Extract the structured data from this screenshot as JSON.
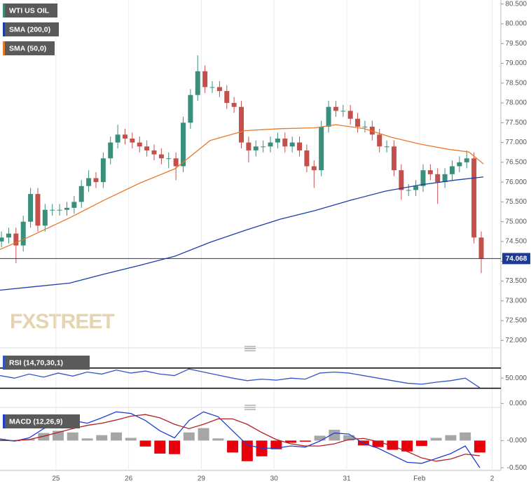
{
  "chart_data": [
    {
      "type": "candlestick",
      "title": "WTI US OIL",
      "watermark": "FXSTREET",
      "up_color": "#3a8f7c",
      "down_color": "#c4504c",
      "x": [
        -0.75,
        -0.65,
        -0.55,
        -0.45,
        -0.35,
        -0.25,
        -0.15,
        -0.05,
        0.05,
        0.15,
        0.25,
        0.35,
        0.45,
        0.55,
        0.65,
        0.75,
        0.85,
        0.95,
        1.05,
        1.15,
        1.25,
        1.35,
        1.45,
        1.55,
        1.65,
        1.75,
        1.85,
        1.95,
        2.05,
        2.15,
        2.25,
        2.35,
        2.45,
        2.55,
        2.65,
        2.75,
        2.85,
        2.95,
        3.05,
        3.15,
        3.25,
        3.35,
        3.45,
        3.55,
        3.65,
        3.75,
        3.85,
        3.95,
        4.05,
        4.15,
        4.25,
        4.35,
        4.45,
        4.55,
        4.65,
        4.75,
        4.85,
        4.95,
        5.05,
        5.15,
        5.25,
        5.35,
        5.45,
        5.55,
        5.65,
        5.75,
        5.85
      ],
      "open": [
        74.5,
        74.6,
        74.7,
        74.4,
        75.0,
        75.7,
        74.9,
        75.3,
        75.3,
        75.3,
        75.35,
        75.5,
        75.9,
        76.1,
        76.0,
        76.6,
        77.0,
        77.2,
        77.1,
        77.0,
        76.9,
        76.8,
        76.7,
        76.6,
        76.6,
        76.4,
        77.5,
        78.2,
        78.8,
        78.4,
        78.4,
        78.3,
        78.0,
        77.9,
        77.0,
        76.8,
        76.9,
        76.9,
        77.0,
        77.1,
        76.9,
        77.0,
        76.8,
        76.4,
        76.3,
        77.4,
        77.9,
        77.8,
        77.8,
        77.6,
        77.4,
        77.4,
        77.2,
        76.9,
        76.9,
        76.3,
        75.8,
        75.8,
        75.9,
        76.3,
        76.2,
        76.0,
        76.2,
        76.4,
        76.5,
        76.6,
        74.6
      ],
      "high": [
        74.75,
        74.85,
        74.85,
        75.15,
        75.85,
        75.85,
        75.45,
        75.45,
        75.45,
        75.5,
        75.65,
        76.05,
        76.3,
        76.25,
        76.75,
        77.15,
        77.45,
        77.35,
        77.25,
        77.15,
        77.05,
        76.95,
        76.85,
        76.75,
        76.75,
        77.65,
        78.35,
        79.2,
        78.95,
        78.55,
        78.55,
        78.45,
        78.15,
        78.05,
        77.15,
        77.05,
        77.05,
        77.15,
        77.25,
        77.25,
        77.15,
        77.15,
        76.95,
        76.55,
        77.55,
        78.05,
        78.05,
        77.95,
        77.95,
        77.75,
        77.55,
        77.55,
        77.35,
        77.05,
        77.05,
        76.45,
        75.95,
        76.05,
        76.45,
        76.45,
        76.35,
        76.35,
        76.55,
        76.65,
        76.8,
        76.75,
        74.75
      ],
      "low": [
        74.35,
        74.45,
        73.95,
        74.25,
        74.85,
        74.75,
        74.75,
        75.15,
        75.15,
        75.15,
        75.2,
        75.35,
        75.75,
        75.85,
        75.85,
        76.45,
        76.85,
        76.95,
        76.85,
        76.75,
        76.65,
        76.55,
        76.45,
        76.35,
        76.05,
        76.25,
        77.35,
        78.05,
        78.25,
        78.25,
        78.15,
        77.85,
        77.75,
        76.85,
        76.5,
        76.65,
        76.75,
        76.75,
        76.85,
        76.75,
        76.75,
        76.65,
        76.25,
        75.85,
        76.15,
        77.25,
        77.65,
        77.65,
        77.45,
        77.25,
        77.25,
        77.05,
        76.75,
        76.75,
        76.15,
        75.55,
        75.65,
        75.65,
        75.75,
        76.05,
        75.45,
        75.85,
        76.05,
        76.25,
        76.35,
        74.45,
        73.7
      ],
      "close": [
        74.6,
        74.7,
        74.4,
        75.0,
        75.7,
        74.9,
        75.3,
        75.3,
        75.3,
        75.35,
        75.5,
        75.9,
        76.1,
        76.0,
        76.6,
        77.0,
        77.2,
        77.1,
        77.0,
        76.9,
        76.8,
        76.7,
        76.6,
        76.6,
        76.4,
        77.5,
        78.2,
        78.8,
        78.4,
        78.4,
        78.3,
        78.0,
        77.9,
        77.0,
        76.8,
        76.9,
        76.9,
        77.0,
        77.1,
        76.9,
        77.0,
        76.8,
        76.4,
        76.3,
        77.4,
        77.9,
        77.8,
        77.8,
        77.6,
        77.4,
        77.4,
        77.2,
        76.9,
        76.9,
        76.3,
        75.8,
        75.8,
        75.9,
        76.3,
        76.2,
        76.0,
        76.2,
        76.4,
        76.5,
        76.6,
        74.6,
        74.07
      ],
      "series": [
        {
          "name": "SMA (200,0)",
          "color": "#1a3fa6",
          "x": [
            -0.77,
            -0.29,
            0.19,
            0.67,
            1.16,
            1.64,
            2.12,
            2.6,
            3.08,
            3.56,
            4.05,
            4.53,
            5.01,
            5.49,
            5.88
          ],
          "values": [
            73.27,
            73.36,
            73.45,
            73.68,
            73.9,
            74.13,
            74.48,
            74.78,
            75.06,
            75.28,
            75.54,
            75.77,
            75.93,
            76.05,
            76.13
          ]
        },
        {
          "name": "SMA (50,0)",
          "color": "#e8792b",
          "x": [
            -0.77,
            -0.39,
            0.19,
            0.67,
            1.16,
            1.64,
            2.12,
            2.6,
            3.08,
            3.56,
            3.85,
            4.24,
            4.62,
            5.01,
            5.39,
            5.68,
            5.88
          ],
          "values": [
            74.3,
            74.6,
            75.1,
            75.55,
            75.98,
            76.34,
            77.05,
            77.3,
            77.35,
            77.37,
            77.45,
            77.35,
            77.13,
            76.96,
            76.83,
            76.76,
            76.46
          ]
        }
      ],
      "last_price": 74.068,
      "xlim": [
        -0.77,
        6.12
      ],
      "xticks": [
        {
          "value": 0,
          "label": "25"
        },
        {
          "value": 1,
          "label": "26"
        },
        {
          "value": 2,
          "label": "29"
        },
        {
          "value": 3,
          "label": "30"
        },
        {
          "value": 4,
          "label": "31"
        },
        {
          "value": 5,
          "label": "Feb"
        },
        {
          "value": 6,
          "label": "2"
        }
      ],
      "ylim": [
        71.9,
        80.6
      ],
      "yticks": [
        {
          "value": 80.5,
          "label": "80.500"
        },
        {
          "value": 80,
          "label": "80.000"
        },
        {
          "value": 79.5,
          "label": "79.500"
        },
        {
          "value": 79,
          "label": "79.000"
        },
        {
          "value": 78.5,
          "label": "78.500"
        },
        {
          "value": 78,
          "label": "78.000"
        },
        {
          "value": 77.5,
          "label": "77.500"
        },
        {
          "value": 77,
          "label": "77.000"
        },
        {
          "value": 76.5,
          "label": "76.500"
        },
        {
          "value": 76,
          "label": "76.000"
        },
        {
          "value": 75.5,
          "label": "75.500"
        },
        {
          "value": 75,
          "label": "75.000"
        },
        {
          "value": 74.5,
          "label": "74.500"
        },
        {
          "value": 74,
          "label": "74.000"
        },
        {
          "value": 73.5,
          "label": "73.500"
        },
        {
          "value": 73,
          "label": "73.000"
        },
        {
          "value": 72.5,
          "label": "72.500"
        },
        {
          "value": 72,
          "label": "72.000"
        }
      ]
    },
    {
      "type": "line",
      "title": "RSI (14,70,30,1)",
      "color": "#3155c4",
      "level_color": "#000000",
      "x": [
        -0.77,
        -0.57,
        -0.37,
        -0.17,
        0.03,
        0.23,
        0.43,
        0.63,
        0.83,
        1.03,
        1.23,
        1.43,
        1.63,
        1.83,
        2.03,
        2.23,
        2.43,
        2.63,
        2.83,
        3.03,
        3.23,
        3.43,
        3.63,
        3.83,
        4.03,
        4.23,
        4.43,
        4.63,
        4.83,
        5.03,
        5.23,
        5.43,
        5.63,
        5.83
      ],
      "values": [
        55,
        50,
        58,
        52,
        60,
        54,
        62,
        58,
        66,
        60,
        64,
        58,
        55,
        68,
        62,
        56,
        50,
        45,
        48,
        46,
        50,
        48,
        60,
        62,
        60,
        55,
        50,
        45,
        40,
        38,
        42,
        45,
        50,
        31
      ],
      "levels": [
        70,
        30
      ],
      "ylim": [
        -5,
        100
      ],
      "yticks": [
        {
          "value": 50,
          "label": "50.000"
        },
        {
          "value": 0,
          "label": "0.000"
        }
      ]
    },
    {
      "type": "macd",
      "title": "MACD (12,26,9)",
      "x": [
        -0.77,
        -0.57,
        -0.37,
        -0.17,
        0.03,
        0.23,
        0.43,
        0.63,
        0.83,
        1.03,
        1.23,
        1.43,
        1.63,
        1.83,
        2.03,
        2.23,
        2.43,
        2.63,
        2.83,
        3.03,
        3.23,
        3.43,
        3.63,
        3.83,
        4.03,
        4.23,
        4.43,
        4.63,
        4.83,
        5.03,
        5.23,
        5.43,
        5.63,
        5.83
      ],
      "series": [
        {
          "color": "#1f3fd1",
          "values": [
            0.03,
            -0.01,
            0.05,
            0.22,
            0.33,
            0.37,
            0.32,
            0.42,
            0.53,
            0.5,
            0.37,
            0.18,
            0.05,
            0.37,
            0.53,
            0.44,
            0.18,
            -0.08,
            -0.14,
            -0.14,
            -0.1,
            -0.12,
            -0.01,
            0.14,
            0.12,
            -0.05,
            -0.14,
            -0.27,
            -0.4,
            -0.42,
            -0.33,
            -0.24,
            -0.1,
            -0.5
          ]
        },
        {
          "color": "#b22222",
          "values": [
            0.0,
            0.0,
            0.02,
            0.08,
            0.15,
            0.22,
            0.28,
            0.32,
            0.38,
            0.45,
            0.48,
            0.42,
            0.3,
            0.22,
            0.3,
            0.4,
            0.4,
            0.3,
            0.15,
            0.02,
            -0.06,
            -0.1,
            -0.1,
            -0.06,
            0.02,
            0.04,
            -0.02,
            -0.1,
            -0.2,
            -0.32,
            -0.38,
            -0.34,
            -0.25,
            -0.28
          ]
        }
      ],
      "histogram": {
        "up_color": "#a6a6a6",
        "down_color": "#e8000b",
        "values": [
          0.03,
          -0.01,
          0.03,
          0.14,
          0.18,
          0.15,
          0.04,
          0.1,
          0.15,
          0.05,
          -0.11,
          -0.24,
          -0.25,
          0.15,
          0.23,
          0.04,
          -0.22,
          -0.38,
          -0.29,
          -0.16,
          -0.04,
          -0.02,
          0.09,
          0.2,
          0.1,
          -0.09,
          -0.12,
          -0.17,
          -0.2,
          -0.1,
          0.05,
          0.1,
          0.15,
          -0.22
        ]
      },
      "ylim": [
        -0.55,
        0.56
      ],
      "yticks": [
        {
          "value": 0,
          "label": "-0.000"
        },
        {
          "value": -0.5,
          "label": "-0.500"
        }
      ]
    }
  ]
}
